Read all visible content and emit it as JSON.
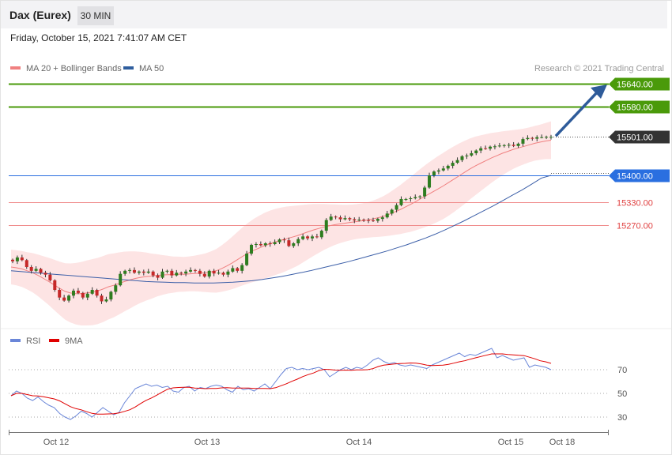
{
  "header": {
    "instrument": "Dax (Eurex)",
    "interval": "30 MIN"
  },
  "datetime": "Friday, October 15, 2021 7:41:07 AM CET",
  "price_legend": [
    {
      "label": "MA 20 + Bollinger Bands",
      "color": "#f08080"
    },
    {
      "label": "MA 50",
      "color": "#2f5e9e"
    }
  ],
  "copyright": "Research © 2021 Trading Central",
  "rsi_legend": [
    {
      "label": "RSI",
      "color": "#6a86d8"
    },
    {
      "label": "9MA",
      "color": "#e00000"
    }
  ],
  "chart_data": [
    {
      "type": "candlestick",
      "title": "",
      "x_tick_labels": [
        "Oct 12",
        "Oct 13",
        "Oct 14",
        "Oct 15",
        "Oct 18"
      ],
      "levels": [
        {
          "value": 15640.0,
          "label": "15640.00",
          "style": "resistance",
          "color": "#4a9a0a"
        },
        {
          "value": 15580.0,
          "label": "15580.00",
          "style": "resistance",
          "color": "#4a9a0a"
        },
        {
          "value": 15501.0,
          "label": "15501.00",
          "style": "last",
          "color": "#333333"
        },
        {
          "value": 15400.0,
          "label": "15400.00",
          "style": "pivot",
          "color": "#2a6fe0"
        },
        {
          "value": 15330.0,
          "label": "15330.00",
          "style": "support",
          "color": "#e04040"
        },
        {
          "value": 15270.0,
          "label": "15270.00",
          "style": "support",
          "color": "#e04040"
        }
      ],
      "close": [
        15175,
        15185,
        15178,
        15160,
        15150,
        15155,
        15145,
        15140,
        15125,
        15100,
        15080,
        15072,
        15085,
        15098,
        15092,
        15080,
        15090,
        15100,
        15085,
        15070,
        15075,
        15095,
        15112,
        15142,
        15150,
        15152,
        15145,
        15148,
        15145,
        15148,
        15138,
        15132,
        15148,
        15150,
        15138,
        15145,
        15143,
        15148,
        15152,
        15150,
        15142,
        15135,
        15150,
        15143,
        15145,
        15140,
        15148,
        15157,
        15150,
        15165,
        15195,
        15218,
        15220,
        15217,
        15222,
        15220,
        15225,
        15232,
        15230,
        15215,
        15222,
        15233,
        15240,
        15235,
        15240,
        15238,
        15255,
        15283,
        15292,
        15290,
        15285,
        15288,
        15285,
        15282,
        15284,
        15283,
        15282,
        15281,
        15286,
        15290,
        15300,
        15310,
        15322,
        15338,
        15338,
        15340,
        15343,
        15345,
        15368,
        15400,
        15410,
        15413,
        15418,
        15425,
        15433,
        15440,
        15450,
        15452,
        15458,
        15465,
        15471,
        15470,
        15475,
        15476,
        15478,
        15479,
        15480,
        15477,
        15483,
        15495,
        15498,
        15496,
        15500,
        15500,
        15501,
        15501
      ],
      "ma20": [
        15160,
        15158,
        15155,
        15150,
        15145,
        15138,
        15130,
        15122,
        15113,
        15104,
        15096,
        15092,
        15090,
        15090,
        15092,
        15094,
        15097,
        15102,
        15108,
        15112,
        15117,
        15122,
        15126,
        15130,
        15133,
        15135,
        15136,
        15138,
        15139,
        15140,
        15140,
        15141,
        15141,
        15142,
        15143,
        15144,
        15145,
        15147,
        15150,
        15156,
        15163,
        15171,
        15180,
        15189,
        15197,
        15204,
        15210,
        15216,
        15221,
        15226,
        15230,
        15234,
        15238,
        15242,
        15247,
        15252,
        15257,
        15261,
        15265,
        15268,
        15271,
        15273,
        15275,
        15277,
        15279,
        15281,
        15283,
        15286,
        15289,
        15293,
        15298,
        15304,
        15310,
        15317,
        15324,
        15332,
        15340,
        15348,
        15356,
        15364,
        15372,
        15381,
        15390,
        15399,
        15408,
        15417,
        15425,
        15432,
        15439,
        15446,
        15452,
        15458,
        15463,
        15468,
        15472,
        15476,
        15480,
        15484,
        15487,
        15490,
        15492
      ],
      "ma50": [
        15150,
        15148,
        15146,
        15144,
        15142,
        15140,
        15138,
        15136,
        15134,
        15132,
        15130,
        15128,
        15126,
        15124,
        15122,
        15121,
        15120,
        15119,
        15119,
        15118,
        15118,
        15118,
        15119,
        15120,
        15122,
        15124,
        15127,
        15131,
        15135,
        15140,
        15145,
        15150,
        15156,
        15162,
        15168,
        15174,
        15181,
        15188,
        15195,
        15202,
        15210,
        15218,
        15227,
        15236,
        15246,
        15257,
        15269,
        15281,
        15294,
        15307,
        15320,
        15334,
        15348,
        15362,
        15377,
        15393,
        15400
      ],
      "rsi_axis_ticks": [
        70,
        50,
        30
      ],
      "rsi": [
        48,
        52,
        50,
        46,
        44,
        47,
        43,
        40,
        38,
        33,
        30,
        28,
        31,
        35,
        33,
        30,
        34,
        38,
        35,
        32,
        34,
        42,
        48,
        54,
        56,
        58,
        56,
        57,
        55,
        56,
        52,
        51,
        55,
        56,
        52,
        55,
        54,
        56,
        57,
        56,
        53,
        51,
        56,
        53,
        54,
        52,
        55,
        58,
        54,
        60,
        66,
        71,
        72,
        70,
        71,
        70,
        71,
        72,
        70,
        64,
        67,
        70,
        72,
        70,
        72,
        71,
        74,
        78,
        80,
        77,
        75,
        76,
        74,
        73,
        74,
        73,
        72,
        71,
        74,
        76,
        78,
        80,
        82,
        84,
        81,
        83,
        82,
        84,
        86,
        88,
        80,
        82,
        80,
        78,
        79,
        80,
        72,
        74,
        73,
        72,
        70
      ]
    }
  ]
}
